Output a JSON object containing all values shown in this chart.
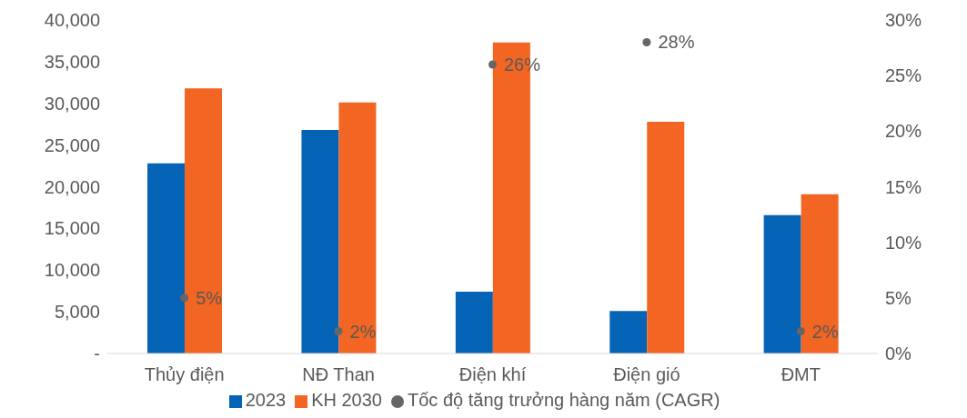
{
  "chart_data": {
    "type": "bar",
    "categories": [
      "Thủy điện",
      "NĐ Than",
      "Điện khí",
      "Điện gió",
      "ĐMT"
    ],
    "series": [
      {
        "name": "2023",
        "color": "#0563b5",
        "values": [
          22800,
          26800,
          7400,
          5100,
          16600
        ]
      },
      {
        "name": "KH 2030",
        "color": "#f26522",
        "values": [
          31800,
          30100,
          37300,
          27800,
          19100
        ]
      },
      {
        "name": "Tốc độ tăng trưởng hàng năm (CAGR)",
        "type": "scatter",
        "axis": "y2",
        "color": "#666666",
        "marker": "circle",
        "values": [
          5,
          2,
          26,
          28,
          2
        ],
        "value_labels": [
          "5%",
          "2%",
          "26%",
          "28%",
          "2%"
        ]
      }
    ],
    "ylim": [
      0,
      40000
    ],
    "yticks": [
      {
        "value": 0,
        "label": "-"
      },
      {
        "value": 5000,
        "label": "5,000"
      },
      {
        "value": 10000,
        "label": "10,000"
      },
      {
        "value": 15000,
        "label": "15,000"
      },
      {
        "value": 20000,
        "label": "20,000"
      },
      {
        "value": 25000,
        "label": "25,000"
      },
      {
        "value": 30000,
        "label": "30,000"
      },
      {
        "value": 35000,
        "label": "35,000"
      },
      {
        "value": 40000,
        "label": "40,000"
      }
    ],
    "y2lim": [
      0,
      30
    ],
    "y2ticks": [
      {
        "value": 0,
        "label": "0%"
      },
      {
        "value": 5,
        "label": "5%"
      },
      {
        "value": 10,
        "label": "10%"
      },
      {
        "value": 15,
        "label": "15%"
      },
      {
        "value": 20,
        "label": "20%"
      },
      {
        "value": 25,
        "label": "25%"
      },
      {
        "value": 30,
        "label": "30%"
      }
    ],
    "grid": false,
    "legend": "bottom"
  }
}
